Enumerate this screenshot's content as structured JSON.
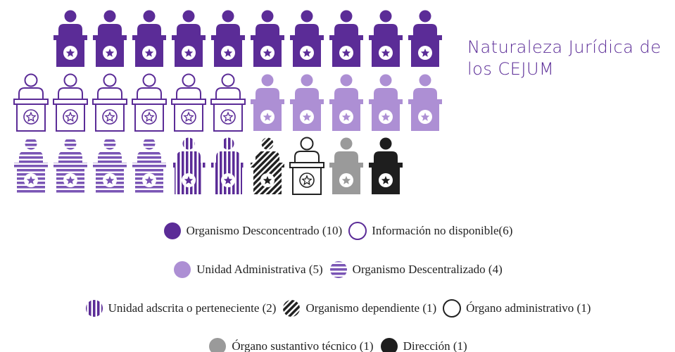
{
  "chart_data": {
    "type": "pictograph",
    "title": "Naturaleza Jurídica de los CEJUM",
    "series": [
      {
        "name": "Organismo Desconcentrado (10)",
        "values": [
          10
        ],
        "color": "#5b2c97",
        "style": "solid"
      },
      {
        "name": "Información no disponible(6)",
        "values": [
          6
        ],
        "color": "#5b2c97",
        "style": "outline"
      },
      {
        "name": "Unidad Administrativa (5)",
        "values": [
          5
        ],
        "color": "#ad8fd4",
        "style": "solid"
      },
      {
        "name": "Organismo Descentralizado (4)",
        "values": [
          4
        ],
        "color": "#7a55b5",
        "style": "hstripe"
      },
      {
        "name": "Unidad adscrita o perteneciente (2)",
        "values": [
          2
        ],
        "color": "#5b2c97",
        "style": "vstripe"
      },
      {
        "name": "Organismo dependiente (1)",
        "values": [
          1
        ],
        "color": "#222222",
        "style": "diagonal"
      },
      {
        "name": "Órgano administrativo (1)",
        "values": [
          1
        ],
        "color": "#222222",
        "style": "outline"
      },
      {
        "name": "Órgano sustantivo técnico (1)",
        "values": [
          1
        ],
        "color": "#9a9a9a",
        "style": "solid"
      },
      {
        "name": "Dirección (1)",
        "values": [
          1
        ],
        "color": "#1e1e1e",
        "style": "solid"
      }
    ]
  }
}
